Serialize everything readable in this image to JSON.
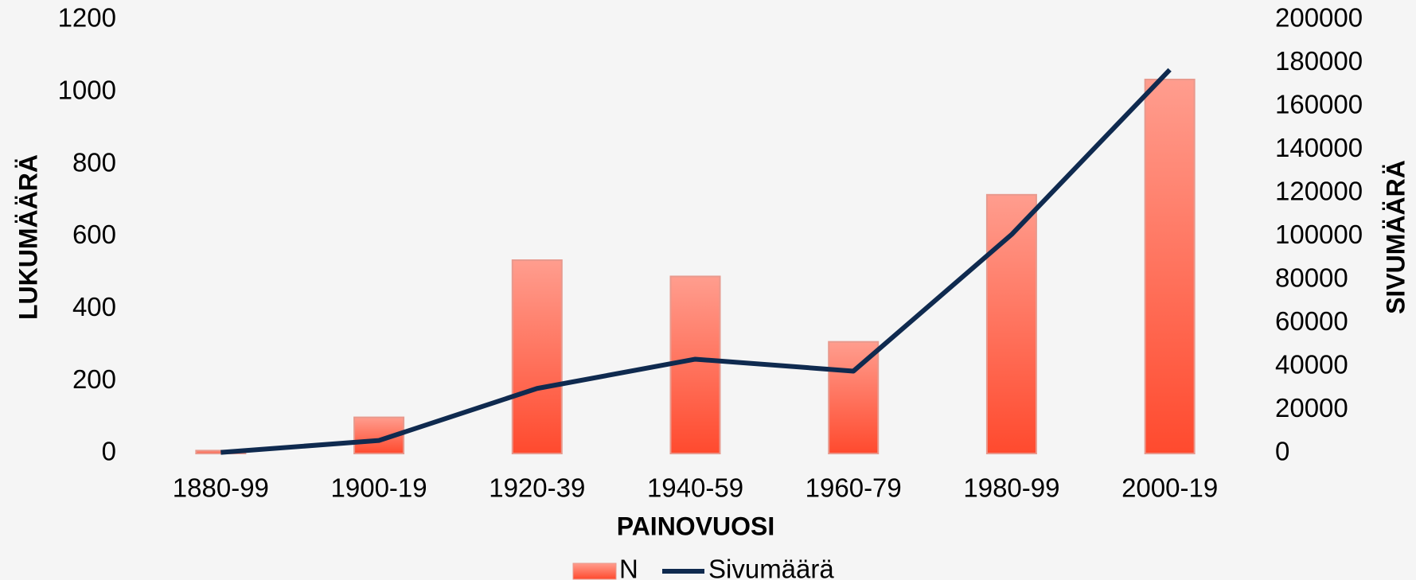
{
  "chart_data": {
    "type": "bar",
    "categories": [
      "1880-99",
      "1900-19",
      "1920-39",
      "1940-59",
      "1960-79",
      "1980-99",
      "2000-19"
    ],
    "series": [
      {
        "name": "N",
        "type": "bar",
        "color": "#ff4a2e",
        "values": [
          8,
          100,
          535,
          490,
          309,
          716,
          1035
        ]
      },
      {
        "name": "Sivumäärä",
        "type": "line",
        "axis": "y2",
        "color": "#0f2a4f",
        "values": [
          500,
          6000,
          30000,
          43500,
          38000,
          101000,
          177000
        ]
      }
    ],
    "x_label": "PAINOVUOSI",
    "y_label": "LUKUMÄÄRÄ",
    "y2_label": "SIVUMÄÄRÄ",
    "ylim": [
      0,
      1200
    ],
    "yticks": [
      0,
      200,
      400,
      600,
      800,
      1000,
      1200
    ],
    "y2lim": [
      0,
      200000
    ],
    "y2ticks": [
      0,
      20000,
      40000,
      60000,
      80000,
      100000,
      120000,
      140000,
      160000,
      180000,
      200000
    ],
    "grid": false,
    "legend": "bottom"
  }
}
